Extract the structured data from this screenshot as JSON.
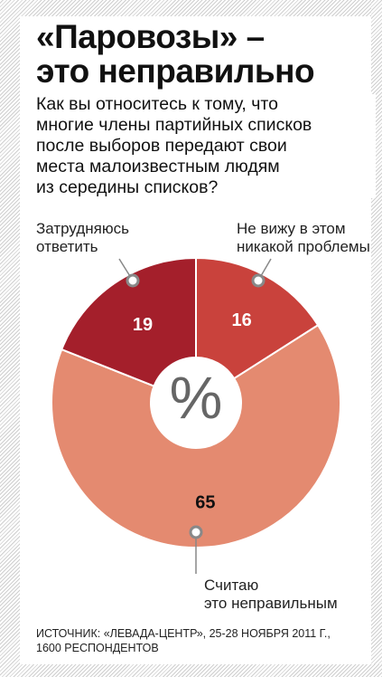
{
  "title_lines": [
    "«Паровозы» –",
    "это неправильно"
  ],
  "question_lines": [
    "Как вы относитесь к тому, что",
    "многие члены партийных списков",
    "после выборов  передают свои",
    "места малоизвестным людям",
    "из середины списков?"
  ],
  "center_symbol": "%",
  "source_lines": [
    "ИСТОЧНИК: «ЛЕВАДА-ЦЕНТР», 25-28 НОЯБРЯ 2011 Г.,",
    "1600 РЕСПОНДЕНТОВ"
  ],
  "colors": {
    "no_problem": "#c9423c",
    "wrong": "#e48a70",
    "hard_to_say": "#a41f2b"
  },
  "chart_data": {
    "type": "pie",
    "donut": true,
    "unit": "%",
    "slices": [
      {
        "label_lines": [
          "Не вижу в этом",
          "никакой проблемы"
        ],
        "value": 16,
        "value_label": "16"
      },
      {
        "label_lines": [
          "Считаю",
          "это неправильным"
        ],
        "value": 65,
        "value_label": "65"
      },
      {
        "label_lines": [
          "Затрудняюсь",
          "ответить"
        ],
        "value": 19,
        "value_label": "19"
      }
    ]
  }
}
